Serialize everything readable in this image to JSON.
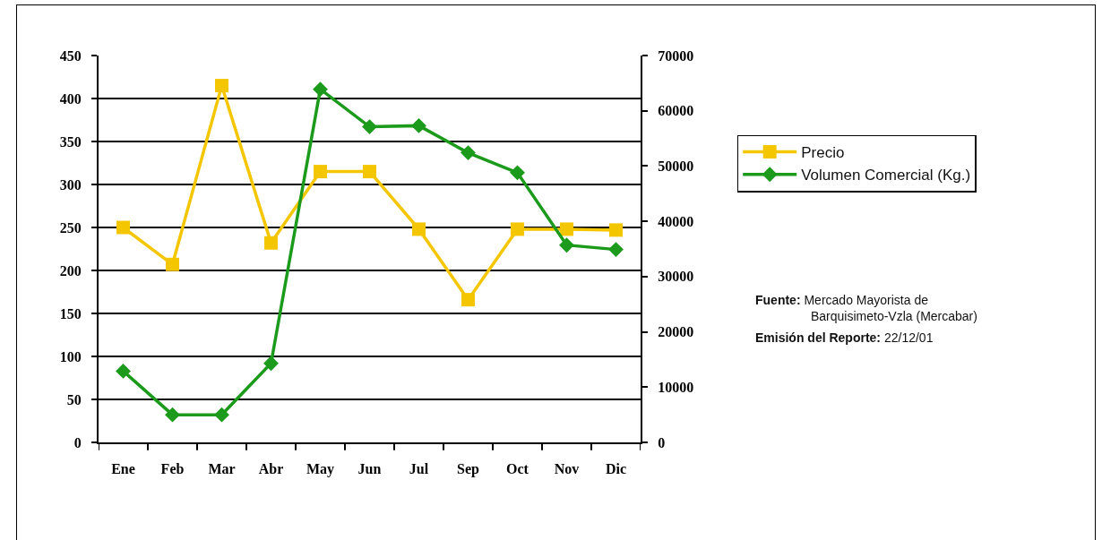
{
  "chart_data": {
    "type": "line",
    "categories": [
      "Ene",
      "Feb",
      "Mar",
      "Abr",
      "May",
      "Jun",
      "Jul",
      "Sep",
      "Oct",
      "Nov",
      "Dic"
    ],
    "series": [
      {
        "name": "Precio",
        "color": "#f4c600",
        "marker": "square",
        "values": [
          250,
          207,
          415,
          232,
          315,
          315,
          248,
          166,
          248,
          248,
          247
        ]
      },
      {
        "name": "Volumen Comercial (Kg.)",
        "color": "#1c9a1c",
        "marker": "diamond",
        "axis": "y2",
        "values": [
          12900,
          5000,
          5000,
          14300,
          63900,
          57100,
          57300,
          52400,
          48800,
          35700,
          34900
        ]
      }
    ],
    "ylim": [
      0,
      450
    ],
    "yticks": [
      0,
      50,
      100,
      150,
      200,
      250,
      300,
      350,
      400,
      450
    ],
    "y2lim": [
      0,
      70000
    ],
    "y2ticks": [
      0,
      10000,
      20000,
      30000,
      40000,
      50000,
      60000,
      70000
    ],
    "grid": "y",
    "legend": "right",
    "annotations": [
      "Fuente: Mercado Mayorista de Barquisimeto-Vzla (Mercabar)",
      "Emisión del Reporte: 22/12/01"
    ]
  }
}
